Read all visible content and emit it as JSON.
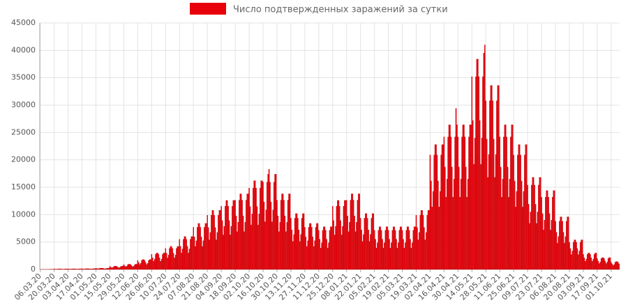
{
  "chart_data": {
    "type": "bar",
    "grid": true,
    "legend": "top",
    "ylim": [
      0,
      45000
    ],
    "yticks": [
      0,
      5000,
      10000,
      15000,
      20000,
      25000,
      30000,
      35000,
      40000,
      45000
    ],
    "categories": [
      "06.03.20",
      null,
      null,
      null,
      null,
      null,
      null,
      null,
      null,
      null,
      null,
      null,
      null,
      null,
      "20.03.20",
      null,
      null,
      null,
      null,
      null,
      null,
      null,
      null,
      null,
      null,
      null,
      null,
      null,
      "03.04.20",
      null,
      null,
      null,
      null,
      null,
      null,
      null,
      null,
      null,
      null,
      null,
      null,
      null,
      "17.04.20",
      null,
      null,
      null,
      null,
      null,
      null,
      null,
      null,
      null,
      null,
      null,
      null,
      null,
      "01.05.20",
      null,
      null,
      null,
      null,
      null,
      null,
      null,
      null,
      null,
      null,
      null,
      null,
      null,
      "15.05.20",
      null,
      null,
      null,
      null,
      null,
      null,
      null,
      null,
      null,
      null,
      null,
      null,
      null,
      "29.05.20",
      null,
      null,
      null,
      null,
      null,
      null,
      null,
      null,
      null,
      null,
      null,
      null,
      null,
      "12.06.20",
      null,
      null,
      null,
      null,
      null,
      null,
      null,
      null,
      null,
      null,
      null,
      null,
      null,
      "26.06.20",
      null,
      null,
      null,
      null,
      null,
      null,
      null,
      null,
      null,
      null,
      null,
      null,
      null,
      "10.07.20",
      null,
      null,
      null,
      null,
      null,
      null,
      null,
      null,
      null,
      null,
      null,
      null,
      null,
      "24.07.20",
      null,
      null,
      null,
      null,
      null,
      null,
      null,
      null,
      null,
      null,
      null,
      null,
      null,
      "07.08.20",
      null,
      null,
      null,
      null,
      null,
      null,
      null,
      null,
      null,
      null,
      null,
      null,
      null,
      "21.08.20",
      null,
      null,
      null,
      null,
      null,
      null,
      null,
      null,
      null,
      null,
      null,
      null,
      null,
      "04.09.20",
      null,
      null,
      null,
      null,
      null,
      null,
      null,
      null,
      null,
      null,
      null,
      null,
      null,
      "18.09.20",
      null,
      null,
      null,
      null,
      null,
      null,
      null,
      null,
      null,
      null,
      null,
      null,
      null,
      "02.10.20",
      null,
      null,
      null,
      null,
      null,
      null,
      null,
      null,
      null,
      null,
      null,
      null,
      null,
      "16.10.20",
      null,
      null,
      null,
      null,
      null,
      null,
      null,
      null,
      null,
      null,
      null,
      null,
      null,
      "30.10.20",
      null,
      null,
      null,
      null,
      null,
      null,
      null,
      null,
      null,
      null,
      null,
      null,
      null,
      "13.11.20",
      null,
      null,
      null,
      null,
      null,
      null,
      null,
      null,
      null,
      null,
      null,
      null,
      null,
      "27.11.20",
      null,
      null,
      null,
      null,
      null,
      null,
      null,
      null,
      null,
      null,
      null,
      null,
      null,
      "11.12.20",
      null,
      null,
      null,
      null,
      null,
      null,
      null,
      null,
      null,
      null,
      null,
      null,
      null,
      "25.12.20",
      null,
      null,
      null,
      null,
      null,
      null,
      null,
      null,
      null,
      null,
      null,
      null,
      null,
      "08.01.21",
      null,
      null,
      null,
      null,
      null,
      null,
      null,
      null,
      null,
      null,
      null,
      null,
      null,
      "22.01.21",
      null,
      null,
      null,
      null,
      null,
      null,
      null,
      null,
      null,
      null,
      null,
      null,
      null,
      "05.02.21",
      null,
      null,
      null,
      null,
      null,
      null,
      null,
      null,
      null,
      null,
      null,
      null,
      null,
      "19.02.21",
      null,
      null,
      null,
      null,
      null,
      null,
      null,
      null,
      null,
      null,
      null,
      null,
      null,
      "05.03.21",
      null,
      null,
      null,
      null,
      null,
      null,
      null,
      null,
      null,
      null,
      null,
      null,
      null,
      "19.03.21",
      null,
      null,
      null,
      null,
      null,
      null,
      null,
      null,
      null,
      null,
      null,
      null,
      null,
      "02.04.21",
      null,
      null,
      null,
      null,
      null,
      null,
      null,
      null,
      null,
      null,
      null,
      null,
      null,
      "16.04.21",
      null,
      null,
      null,
      null,
      null,
      null,
      null,
      null,
      null,
      null,
      null,
      null,
      null,
      "30.04.21",
      null,
      null,
      null,
      null,
      null,
      null,
      null,
      null,
      null,
      null,
      null,
      null,
      null,
      "14.05.21",
      null,
      null,
      null,
      null,
      null,
      null,
      null,
      null,
      null,
      null,
      null,
      null,
      null,
      "28.05.21",
      null,
      null,
      null,
      null,
      null,
      null,
      null,
      null,
      null,
      null,
      null,
      null,
      null,
      "11.06.21",
      null,
      null,
      null,
      null,
      null,
      null,
      null,
      null,
      null,
      null,
      null,
      null,
      null,
      "25.06.21",
      null,
      null,
      null,
      null,
      null,
      null,
      null,
      null,
      null,
      null,
      null,
      null,
      null,
      "09.07.21",
      null,
      null,
      null,
      null,
      null,
      null,
      null,
      null,
      null,
      null,
      null,
      null,
      null,
      "23.07.21",
      null,
      null,
      null,
      null,
      null,
      null,
      null,
      null,
      null,
      null,
      null,
      null,
      null,
      "06.08.21",
      null,
      null,
      null,
      null,
      null,
      null,
      null,
      null,
      null,
      null,
      null,
      null,
      null,
      "20.08.21",
      null,
      null,
      null,
      null,
      null,
      null,
      null,
      null,
      null,
      null,
      null,
      null,
      null,
      "03.09.21",
      null,
      null,
      null,
      null,
      null,
      null,
      null,
      null,
      null,
      null,
      null,
      null,
      null,
      "17.09.21",
      null,
      null,
      null,
      null,
      null,
      null,
      null,
      null,
      null,
      null,
      null,
      null,
      null,
      "01.10.21",
      null,
      null,
      null,
      null,
      null,
      null,
      null,
      null
    ],
    "series": [
      {
        "name": "Число подтвержденных заражений за сутки",
        "color": "#e8000b",
        "values": [
          1,
          2,
          1,
          3,
          5,
          4,
          6,
          8,
          10,
          12,
          15,
          20,
          30,
          35,
          88,
          68,
          48,
          60,
          88,
          96,
          96,
          88,
          68,
          48,
          60,
          88,
          96,
          96,
          110,
          85,
          60,
          75,
          110,
          120,
          120,
          110,
          85,
          60,
          75,
          110,
          120,
          120,
          132,
          102,
          72,
          90,
          132,
          144,
          144,
          132,
          102,
          72,
          90,
          132,
          144,
          144,
          220,
          170,
          120,
          150,
          220,
          240,
          240,
          220,
          170,
          120,
          150,
          220,
          240,
          240,
          550,
          425,
          300,
          375,
          550,
          600,
          600,
          550,
          425,
          300,
          375,
          550,
          600,
          600,
          880,
          680,
          480,
          600,
          880,
          960,
          960,
          880,
          680,
          480,
          600,
          880,
          960,
          960,
          1650,
          1275,
          900,
          1125,
          1650,
          1800,
          1800,
          1650,
          1275,
          900,
          1125,
          1650,
          1800,
          1800,
          2750,
          2125,
          1500,
          1875,
          2750,
          3000,
          3000,
          2750,
          2125,
          1500,
          1875,
          2750,
          3000,
          3000,
          3850,
          2975,
          2100,
          2625,
          3850,
          4200,
          4200,
          3850,
          2975,
          2100,
          2625,
          3850,
          4200,
          4200,
          5500,
          4250,
          3000,
          3750,
          5500,
          6000,
          6000,
          5500,
          4250,
          3000,
          3750,
          5500,
          6000,
          6000,
          7700,
          5950,
          4200,
          5250,
          7700,
          8400,
          8400,
          7700,
          5950,
          4200,
          5250,
          7700,
          8400,
          8400,
          9900,
          7650,
          5400,
          6750,
          9900,
          10800,
          10800,
          9900,
          7650,
          5400,
          6750,
          9900,
          10800,
          10800,
          11550,
          8925,
          6300,
          7875,
          11550,
          12600,
          12600,
          11550,
          8925,
          6300,
          7875,
          11550,
          12600,
          12600,
          12650,
          9775,
          6900,
          8625,
          12650,
          13800,
          13800,
          12650,
          9775,
          6900,
          8625,
          12650,
          13800,
          13800,
          14850,
          11475,
          8100,
          10125,
          14850,
          16200,
          16200,
          14850,
          11475,
          8100,
          10125,
          14850,
          16200,
          16200,
          15950,
          12325,
          8700,
          10875,
          15950,
          17400,
          18300,
          15950,
          12325,
          8700,
          10875,
          15950,
          17400,
          17400,
          12650,
          9775,
          6900,
          8625,
          12650,
          13800,
          13800,
          12650,
          9775,
          6900,
          8625,
          12650,
          13800,
          13800,
          9350,
          7225,
          5100,
          6375,
          9350,
          10200,
          10200,
          9350,
          7225,
          5100,
          6375,
          9350,
          10200,
          10200,
          7700,
          5950,
          4200,
          5250,
          7700,
          8400,
          8400,
          7700,
          5950,
          4200,
          5250,
          7700,
          8400,
          8400,
          7150,
          5525,
          3900,
          4875,
          7150,
          7800,
          7800,
          7150,
          5525,
          3900,
          4875,
          7150,
          7800,
          7800,
          11550,
          8925,
          6300,
          7875,
          11550,
          12600,
          12600,
          11550,
          8925,
          6300,
          7875,
          11550,
          12600,
          12600,
          12650,
          9775,
          6900,
          8625,
          12650,
          13800,
          13800,
          12650,
          9775,
          6900,
          8625,
          12650,
          13800,
          13800,
          9350,
          7225,
          5100,
          6375,
          9350,
          10200,
          10200,
          9350,
          7225,
          5100,
          6375,
          9350,
          10200,
          10200,
          7150,
          5525,
          3900,
          4875,
          7150,
          7800,
          7800,
          7150,
          5525,
          3900,
          4875,
          7150,
          7800,
          7800,
          7150,
          5525,
          3900,
          4875,
          7150,
          7800,
          7800,
          7150,
          5525,
          3900,
          4875,
          7150,
          7800,
          7800,
          7150,
          5525,
          3900,
          4875,
          7150,
          7800,
          7800,
          7150,
          5525,
          3900,
          4875,
          7150,
          7800,
          7800,
          9900,
          7650,
          5400,
          6750,
          9900,
          10800,
          10800,
          9900,
          7650,
          5400,
          6750,
          9900,
          10800,
          10800,
          20900,
          16150,
          11400,
          14250,
          20900,
          22800,
          22800,
          20900,
          16150,
          11400,
          14250,
          20900,
          22800,
          22800,
          24200,
          18700,
          13200,
          16500,
          24200,
          26400,
          26400,
          24200,
          18700,
          13200,
          16500,
          24200,
          29400,
          26400,
          24200,
          18700,
          13200,
          16500,
          24200,
          26400,
          26400,
          24200,
          18700,
          13200,
          16500,
          24200,
          26400,
          26400,
          35200,
          27200,
          19200,
          24000,
          35200,
          38400,
          38400,
          35200,
          27200,
          19200,
          24000,
          35200,
          39500,
          41000,
          30800,
          23800,
          16800,
          21000,
          30800,
          33600,
          33600,
          30800,
          23800,
          16800,
          21000,
          30800,
          33600,
          33600,
          24200,
          18700,
          13200,
          16500,
          24200,
          26400,
          26400,
          24200,
          18700,
          13200,
          16500,
          24200,
          26400,
          26400,
          20900,
          16150,
          11400,
          14250,
          20900,
          22800,
          22800,
          20900,
          16150,
          11400,
          14250,
          20900,
          22800,
          22800,
          15400,
          11900,
          8400,
          10500,
          15400,
          16800,
          16800,
          15400,
          11900,
          8400,
          10500,
          15400,
          16800,
          16800,
          13200,
          10200,
          7200,
          9000,
          13200,
          14400,
          14400,
          13200,
          10200,
          7200,
          9000,
          13200,
          14400,
          14400,
          8800,
          6800,
          4800,
          6000,
          8800,
          9600,
          9600,
          8800,
          6800,
          4800,
          6000,
          8800,
          9600,
          9600,
          4950,
          3825,
          2700,
          3375,
          4950,
          5400,
          5400,
          4950,
          3825,
          2700,
          3375,
          4950,
          5400,
          5400,
          2750,
          2125,
          1500,
          1875,
          2750,
          3000,
          3000,
          2750,
          2125,
          1500,
          1875,
          2750,
          3000,
          3000,
          1980,
          1530,
          1080,
          1350,
          1980,
          2160,
          2160,
          1980,
          1530,
          1080,
          1350,
          1980,
          2160,
          2160,
          1320,
          1020,
          720,
          900,
          1320,
          1440,
          1440,
          1320,
          1020
        ]
      }
    ]
  }
}
